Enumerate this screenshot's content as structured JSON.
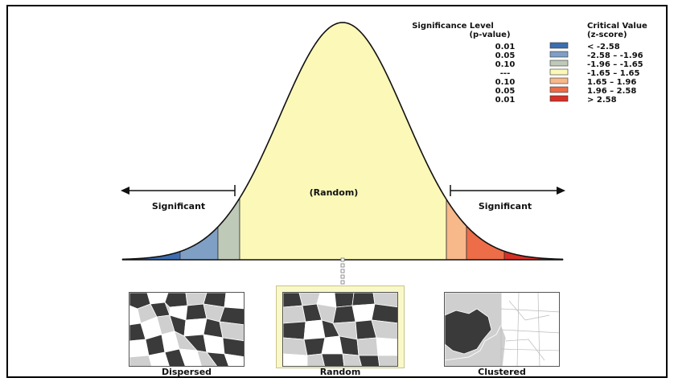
{
  "legend": {
    "significance_header_1": "Significance Level",
    "significance_header_2": "(p-value)",
    "critical_header_1": "Critical Value",
    "critical_header_2": "(z-score)",
    "rows": [
      {
        "p": "0.01",
        "z": "< -2.58",
        "color": "#3d6db0"
      },
      {
        "p": "0.05",
        "z": "-2.58 – -1.96",
        "color": "#7f9fc4"
      },
      {
        "p": "0.10",
        "z": "-1.96 – -1.65",
        "color": "#bfc9b8"
      },
      {
        "p": "---",
        "z": "-1.65 – 1.65",
        "color": "#fbf8b8"
      },
      {
        "p": "0.10",
        "z": "1.65 – 1.96",
        "color": "#f7b88a"
      },
      {
        "p": "0.05",
        "z": "1.96 – 2.58",
        "color": "#ec6d47"
      },
      {
        "p": "0.01",
        "z": "> 2.58",
        "color": "#d73027"
      }
    ]
  },
  "curve": {
    "center_label": "(Random)",
    "left_label": "Significant",
    "right_label": "Significant"
  },
  "patterns": {
    "dispersed": "Dispersed",
    "random": "Random",
    "clustered": "Clustered"
  }
}
